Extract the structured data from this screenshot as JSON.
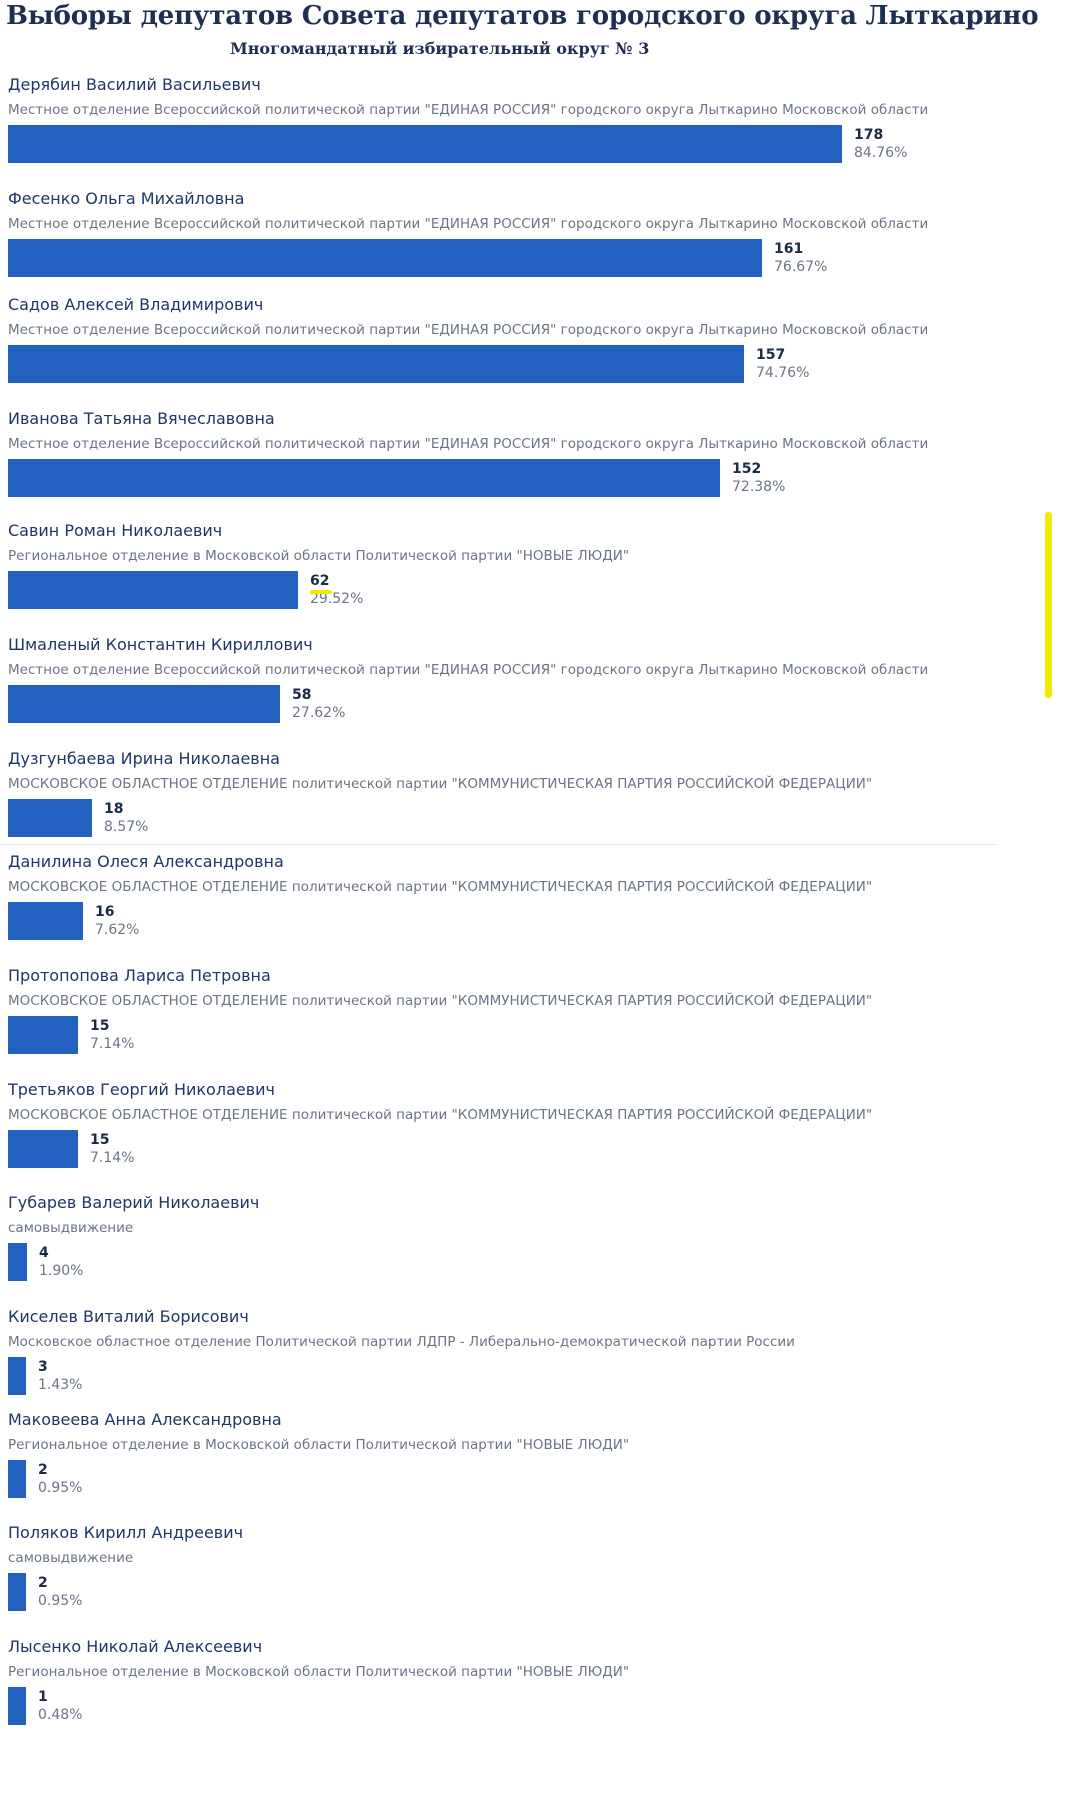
{
  "chart_data": {
    "type": "bar",
    "orientation": "horizontal",
    "title": "Выборы депутатов Совета депутатов городского округа Лыткарино",
    "subtitle": "Многомандатный избирательный округ № 3",
    "bar_color": "#2361c0",
    "highlight_color": "#f2ea00",
    "candidates": [
      {
        "name": "Дерябин Василий Васильевич",
        "party": "Местное отделение Всероссийской политической партии \"ЕДИНАЯ РОССИЯ\" городского округа Лыткарино Московской области",
        "votes": 178,
        "votes_label": "178",
        "percent_label": "84.76%"
      },
      {
        "name": "Фесенко Ольга Михайловна",
        "party": "Местное отделение Всероссийской политической партии \"ЕДИНАЯ РОССИЯ\" городского округа Лыткарино Московской области",
        "votes": 161,
        "votes_label": "161",
        "percent_label": "76.67%"
      },
      {
        "name": "Садов Алексей Владимирович",
        "party": "Местное отделение Всероссийской политической партии \"ЕДИНАЯ РОССИЯ\" городского округа Лыткарино Московской области",
        "votes": 157,
        "votes_label": "157",
        "percent_label": "74.76%"
      },
      {
        "name": "Иванова Татьяна Вячеславовна",
        "party": "Местное отделение Всероссийской политической партии \"ЕДИНАЯ РОССИЯ\" городского округа Лыткарино Московской области",
        "votes": 152,
        "votes_label": "152",
        "percent_label": "72.38%"
      },
      {
        "name": "Савин Роман Николаевич",
        "party": "Региональное отделение в Московской области Политической партии \"НОВЫЕ ЛЮДИ\"",
        "votes": 62,
        "votes_label": "62",
        "percent_label": "29.52%",
        "highlighted": true
      },
      {
        "name": "Шмаленый Константин Кириллович",
        "party": "Местное отделение Всероссийской политической партии \"ЕДИНАЯ РОССИЯ\" городского округа Лыткарино Московской области",
        "votes": 58,
        "votes_label": "58",
        "percent_label": "27.62%"
      },
      {
        "name": "Дузгунбаева Ирина Николаевна",
        "party": "МОСКОВСКОЕ ОБЛАСТНОЕ ОТДЕЛЕНИЕ политической партии \"КОММУНИСТИЧЕСКАЯ ПАРТИЯ РОССИЙСКОЙ ФЕДЕРАЦИИ\"",
        "votes": 18,
        "votes_label": "18",
        "percent_label": "8.57%"
      },
      {
        "name": "Данилина Олеся Александровна",
        "party": "МОСКОВСКОЕ ОБЛАСТНОЕ ОТДЕЛЕНИЕ политической партии \"КОММУНИСТИЧЕСКАЯ ПАРТИЯ РОССИЙСКОЙ ФЕДЕРАЦИИ\"",
        "votes": 16,
        "votes_label": "16",
        "percent_label": "7.62%"
      },
      {
        "name": "Протопопова Лариса Петровна",
        "party": "МОСКОВСКОЕ ОБЛАСТНОЕ ОТДЕЛЕНИЕ политической партии \"КОММУНИСТИЧЕСКАЯ ПАРТИЯ РОССИЙСКОЙ ФЕДЕРАЦИИ\"",
        "votes": 15,
        "votes_label": "15",
        "percent_label": "7.14%"
      },
      {
        "name": "Третьяков Георгий Николаевич",
        "party": "МОСКОВСКОЕ ОБЛАСТНОЕ ОТДЕЛЕНИЕ политической партии \"КОММУНИСТИЧЕСКАЯ ПАРТИЯ РОССИЙСКОЙ ФЕДЕРАЦИИ\"",
        "votes": 15,
        "votes_label": "15",
        "percent_label": "7.14%"
      },
      {
        "name": "Губарев Валерий Николаевич",
        "party": "самовыдвижение",
        "votes": 4,
        "votes_label": "4",
        "percent_label": "1.90%"
      },
      {
        "name": "Киселев Виталий Борисович",
        "party": "Московское областное отделение Политической партии ЛДПР - Либерально-демократической партии России",
        "votes": 3,
        "votes_label": "3",
        "percent_label": "1.43%"
      },
      {
        "name": "Маковеева Анна Александровна",
        "party": "Региональное отделение в Московской области Политической партии \"НОВЫЕ ЛЮДИ\"",
        "votes": 2,
        "votes_label": "2",
        "percent_label": "0.95%"
      },
      {
        "name": "Поляков Кирилл Андреевич",
        "party": "самовыдвижение",
        "votes": 2,
        "votes_label": "2",
        "percent_label": "0.95%"
      },
      {
        "name": "Лысенко Николай Алексеевич",
        "party": "Региональное отделение в Московской области Политической партии \"НОВЫЕ ЛЮДИ\"",
        "votes": 1,
        "votes_label": "1",
        "percent_label": "0.48%"
      }
    ]
  }
}
